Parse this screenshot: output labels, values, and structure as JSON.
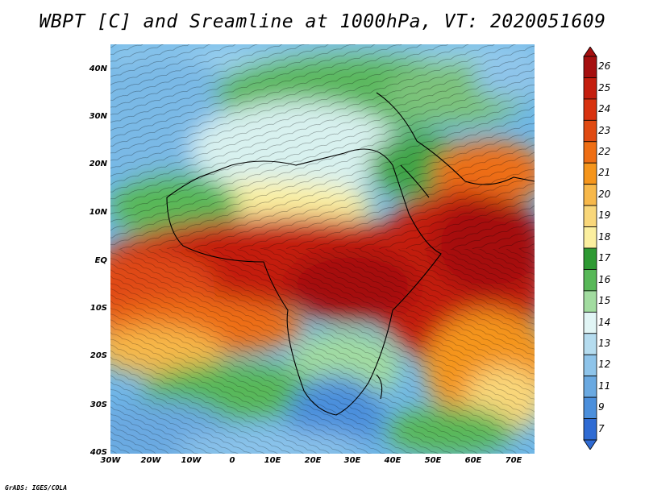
{
  "title": "WBPT [C] and Sreamline at 1000hPa, VT: 2020051609",
  "footer": "GrADS: IGES/COLA",
  "axes": {
    "lat_labels": [
      "40N",
      "30N",
      "20N",
      "10N",
      "EQ",
      "10S",
      "20S",
      "30S",
      "40S"
    ],
    "lon_labels": [
      "30W",
      "20W",
      "10W",
      "0",
      "10E",
      "20E",
      "30E",
      "40E",
      "50E",
      "60E",
      "70E"
    ],
    "lat_range": [
      -40,
      45
    ],
    "lon_range": [
      -30,
      75
    ]
  },
  "colorbar": {
    "labels": [
      "26",
      "25",
      "24",
      "23",
      "22",
      "21",
      "20",
      "19",
      "18",
      "17",
      "16",
      "15",
      "14",
      "13",
      "12",
      "11",
      "9",
      "7"
    ],
    "colors": [
      "#a50f0f",
      "#c41e0e",
      "#d8320f",
      "#e04a12",
      "#ee6e14",
      "#f5951b",
      "#f7b84a",
      "#f9d77a",
      "#fbef9f",
      "#2e9a33",
      "#58b858",
      "#a2dca0",
      "#e1f5f5",
      "#b5dcef",
      "#8ec4ea",
      "#6aa9e1",
      "#4b8fdc",
      "#2f6bd3"
    ]
  },
  "chart_data": {
    "type": "heatmap",
    "variable": "WBPT [C]",
    "level": "1000hPa",
    "valid_time": "2020051609",
    "overlay": "streamlines",
    "region": {
      "lon": [
        -30,
        75
      ],
      "lat": [
        -40,
        45
      ]
    },
    "value_range": [
      7,
      26
    ]
  }
}
